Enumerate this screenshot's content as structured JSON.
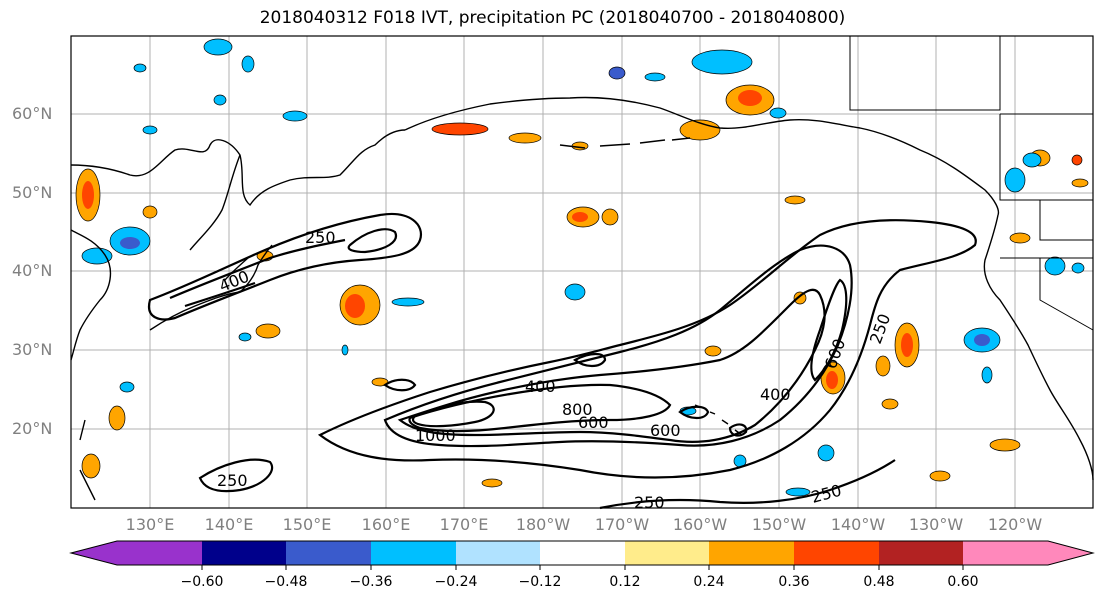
{
  "title": "2018040312 F018 IVT, precipitation PC (2018040700 - 2018040800)",
  "lat_ticks": [
    "60°N",
    "50°N",
    "40°N",
    "30°N",
    "20°N"
  ],
  "lon_ticks": [
    "130°E",
    "140°E",
    "150°E",
    "160°E",
    "170°E",
    "180°W",
    "170°W",
    "160°W",
    "150°W",
    "140°W",
    "130°W",
    "120°W"
  ],
  "contour_labels": [
    "250",
    "400",
    "1000",
    "400",
    "800",
    "600",
    "600",
    "400",
    "600",
    "250",
    "250",
    "250",
    "250"
  ],
  "colorbar": {
    "ticks": [
      "−0.60",
      "−0.48",
      "−0.36",
      "−0.24",
      "−0.12",
      "0.12",
      "0.24",
      "0.36",
      "0.48",
      "0.60"
    ],
    "colors": [
      "#9932cc",
      "#00008b",
      "#3a5bcc",
      "#00bfff",
      "#b0e2ff",
      "#ffffff",
      "#ffec8b",
      "#ffa500",
      "#ff4500",
      "#b22222",
      "#ff88bb"
    ]
  },
  "chart_data": {
    "type": "map",
    "title": "2018040312 F018 IVT, precipitation PC (2018040700 - 2018040800)",
    "lat_range": [
      "10°N",
      "70°N"
    ],
    "lon_range": [
      "120°E",
      "110°W"
    ],
    "ivt_contour_levels": [
      250,
      400,
      600,
      800,
      1000
    ],
    "precip_pc_levels": [
      -0.6,
      -0.48,
      -0.36,
      -0.24,
      -0.12,
      0.12,
      0.24,
      0.36,
      0.48,
      0.6
    ]
  }
}
